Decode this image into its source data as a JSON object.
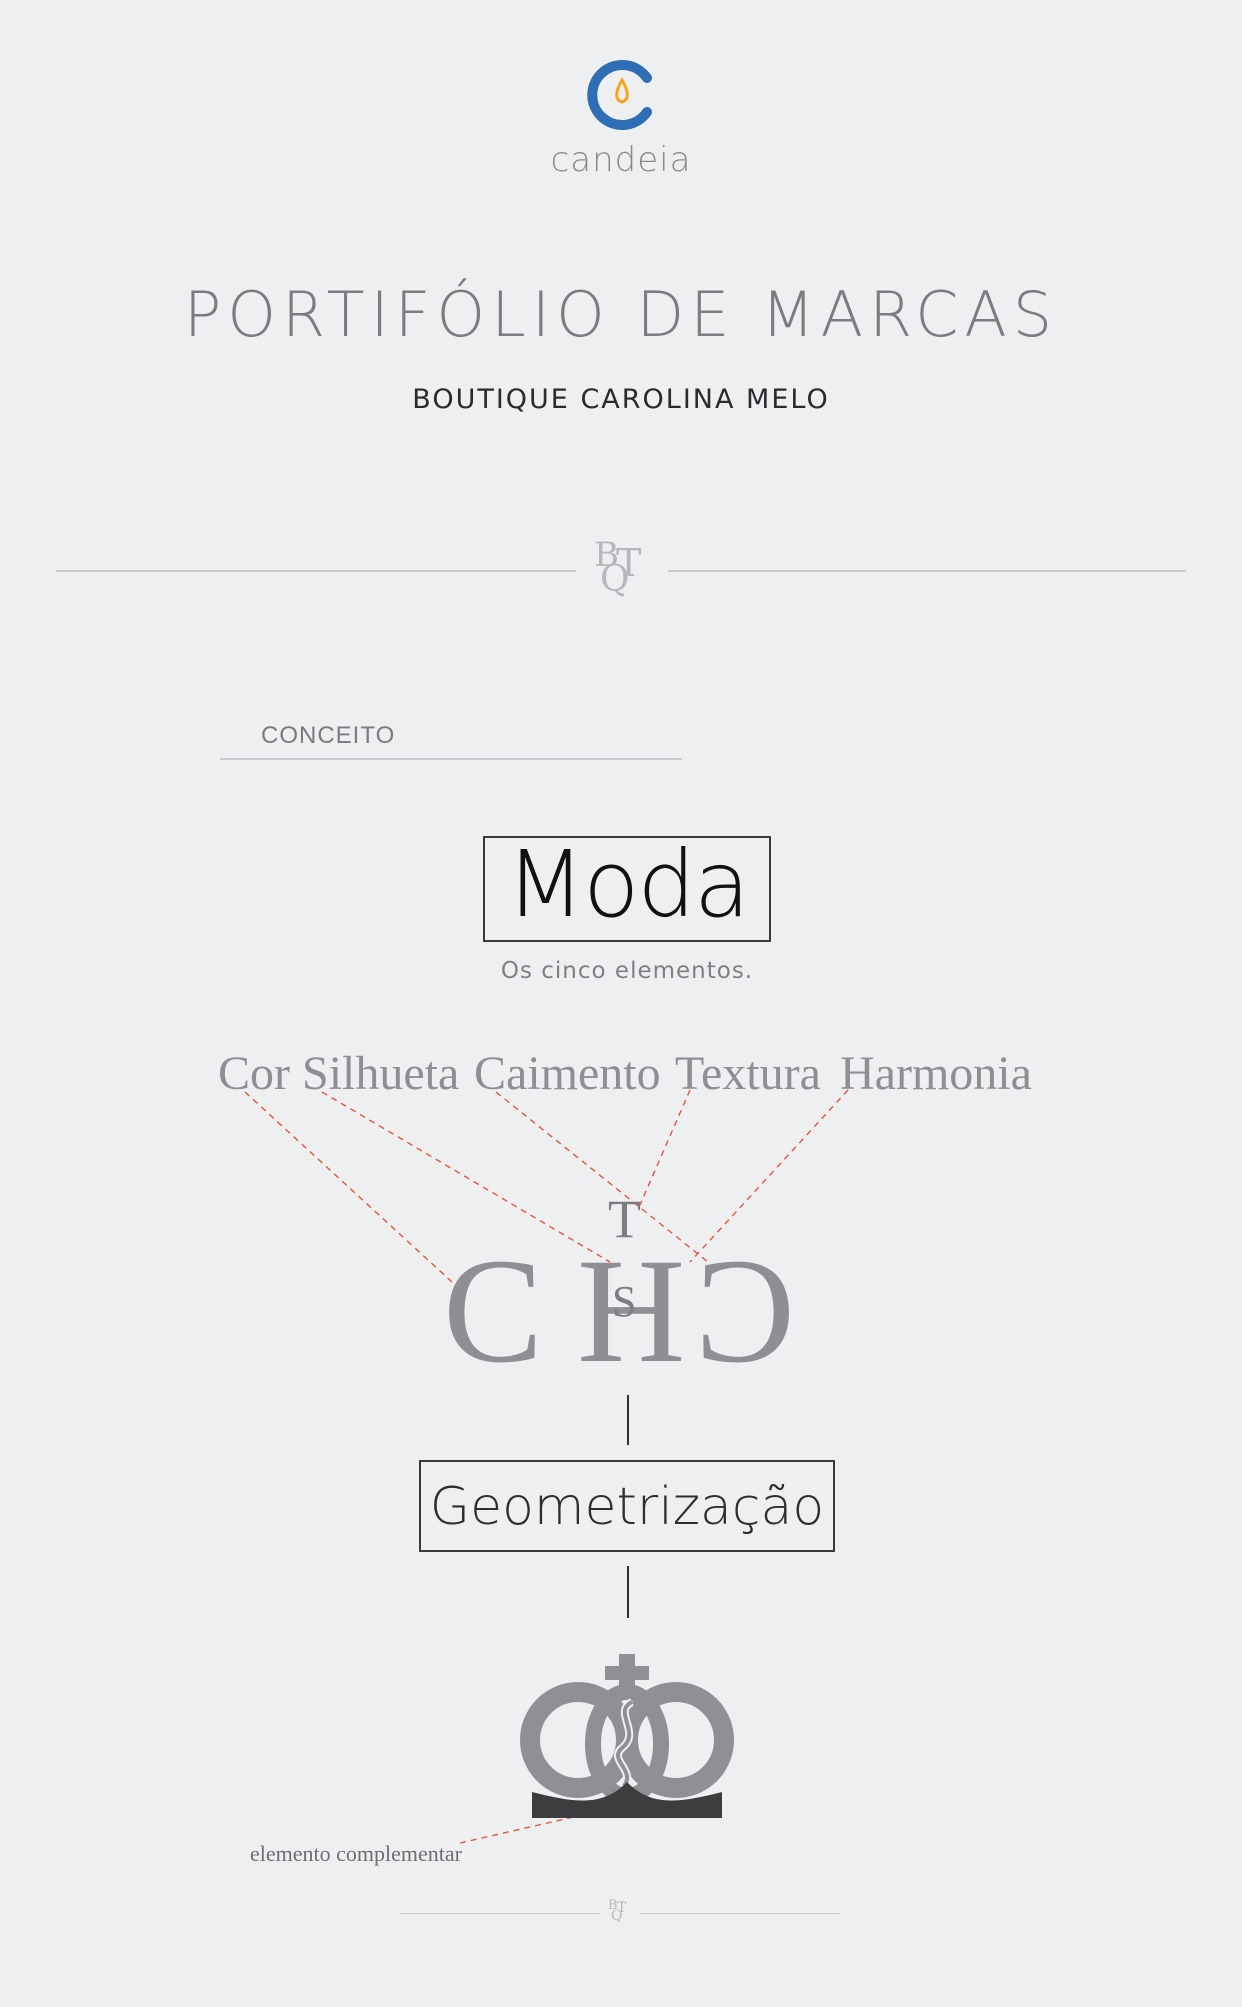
{
  "brand": {
    "name": "candeia",
    "colors": {
      "ring": "#2f6db5",
      "flame": "#f3a51e",
      "text": "#8a8a8d"
    }
  },
  "header": {
    "title": "PORTIFÓLIO DE MARCAS",
    "subtitle": "BOUTIQUE CAROLINA MELO"
  },
  "monogram": {
    "letter_1": "B",
    "letter_2": "T",
    "letter_3": "Q"
  },
  "section": {
    "label": "CONCEITO"
  },
  "concept": {
    "main_word": "Moda",
    "tagline": "Os cinco elementos.",
    "elements": [
      "Cor",
      "Silhueta",
      "Caimento",
      "Textura",
      "Harmonia"
    ],
    "letters": {
      "left": "C",
      "center": "H",
      "right": "C",
      "top": "T",
      "middle": "S"
    },
    "process_word": "Geometrização",
    "complement_label": "elemento complementar"
  },
  "colors": {
    "dash": "#e8553a",
    "gray_text": "#8f8f93",
    "crown_base": "#3d3d40"
  }
}
